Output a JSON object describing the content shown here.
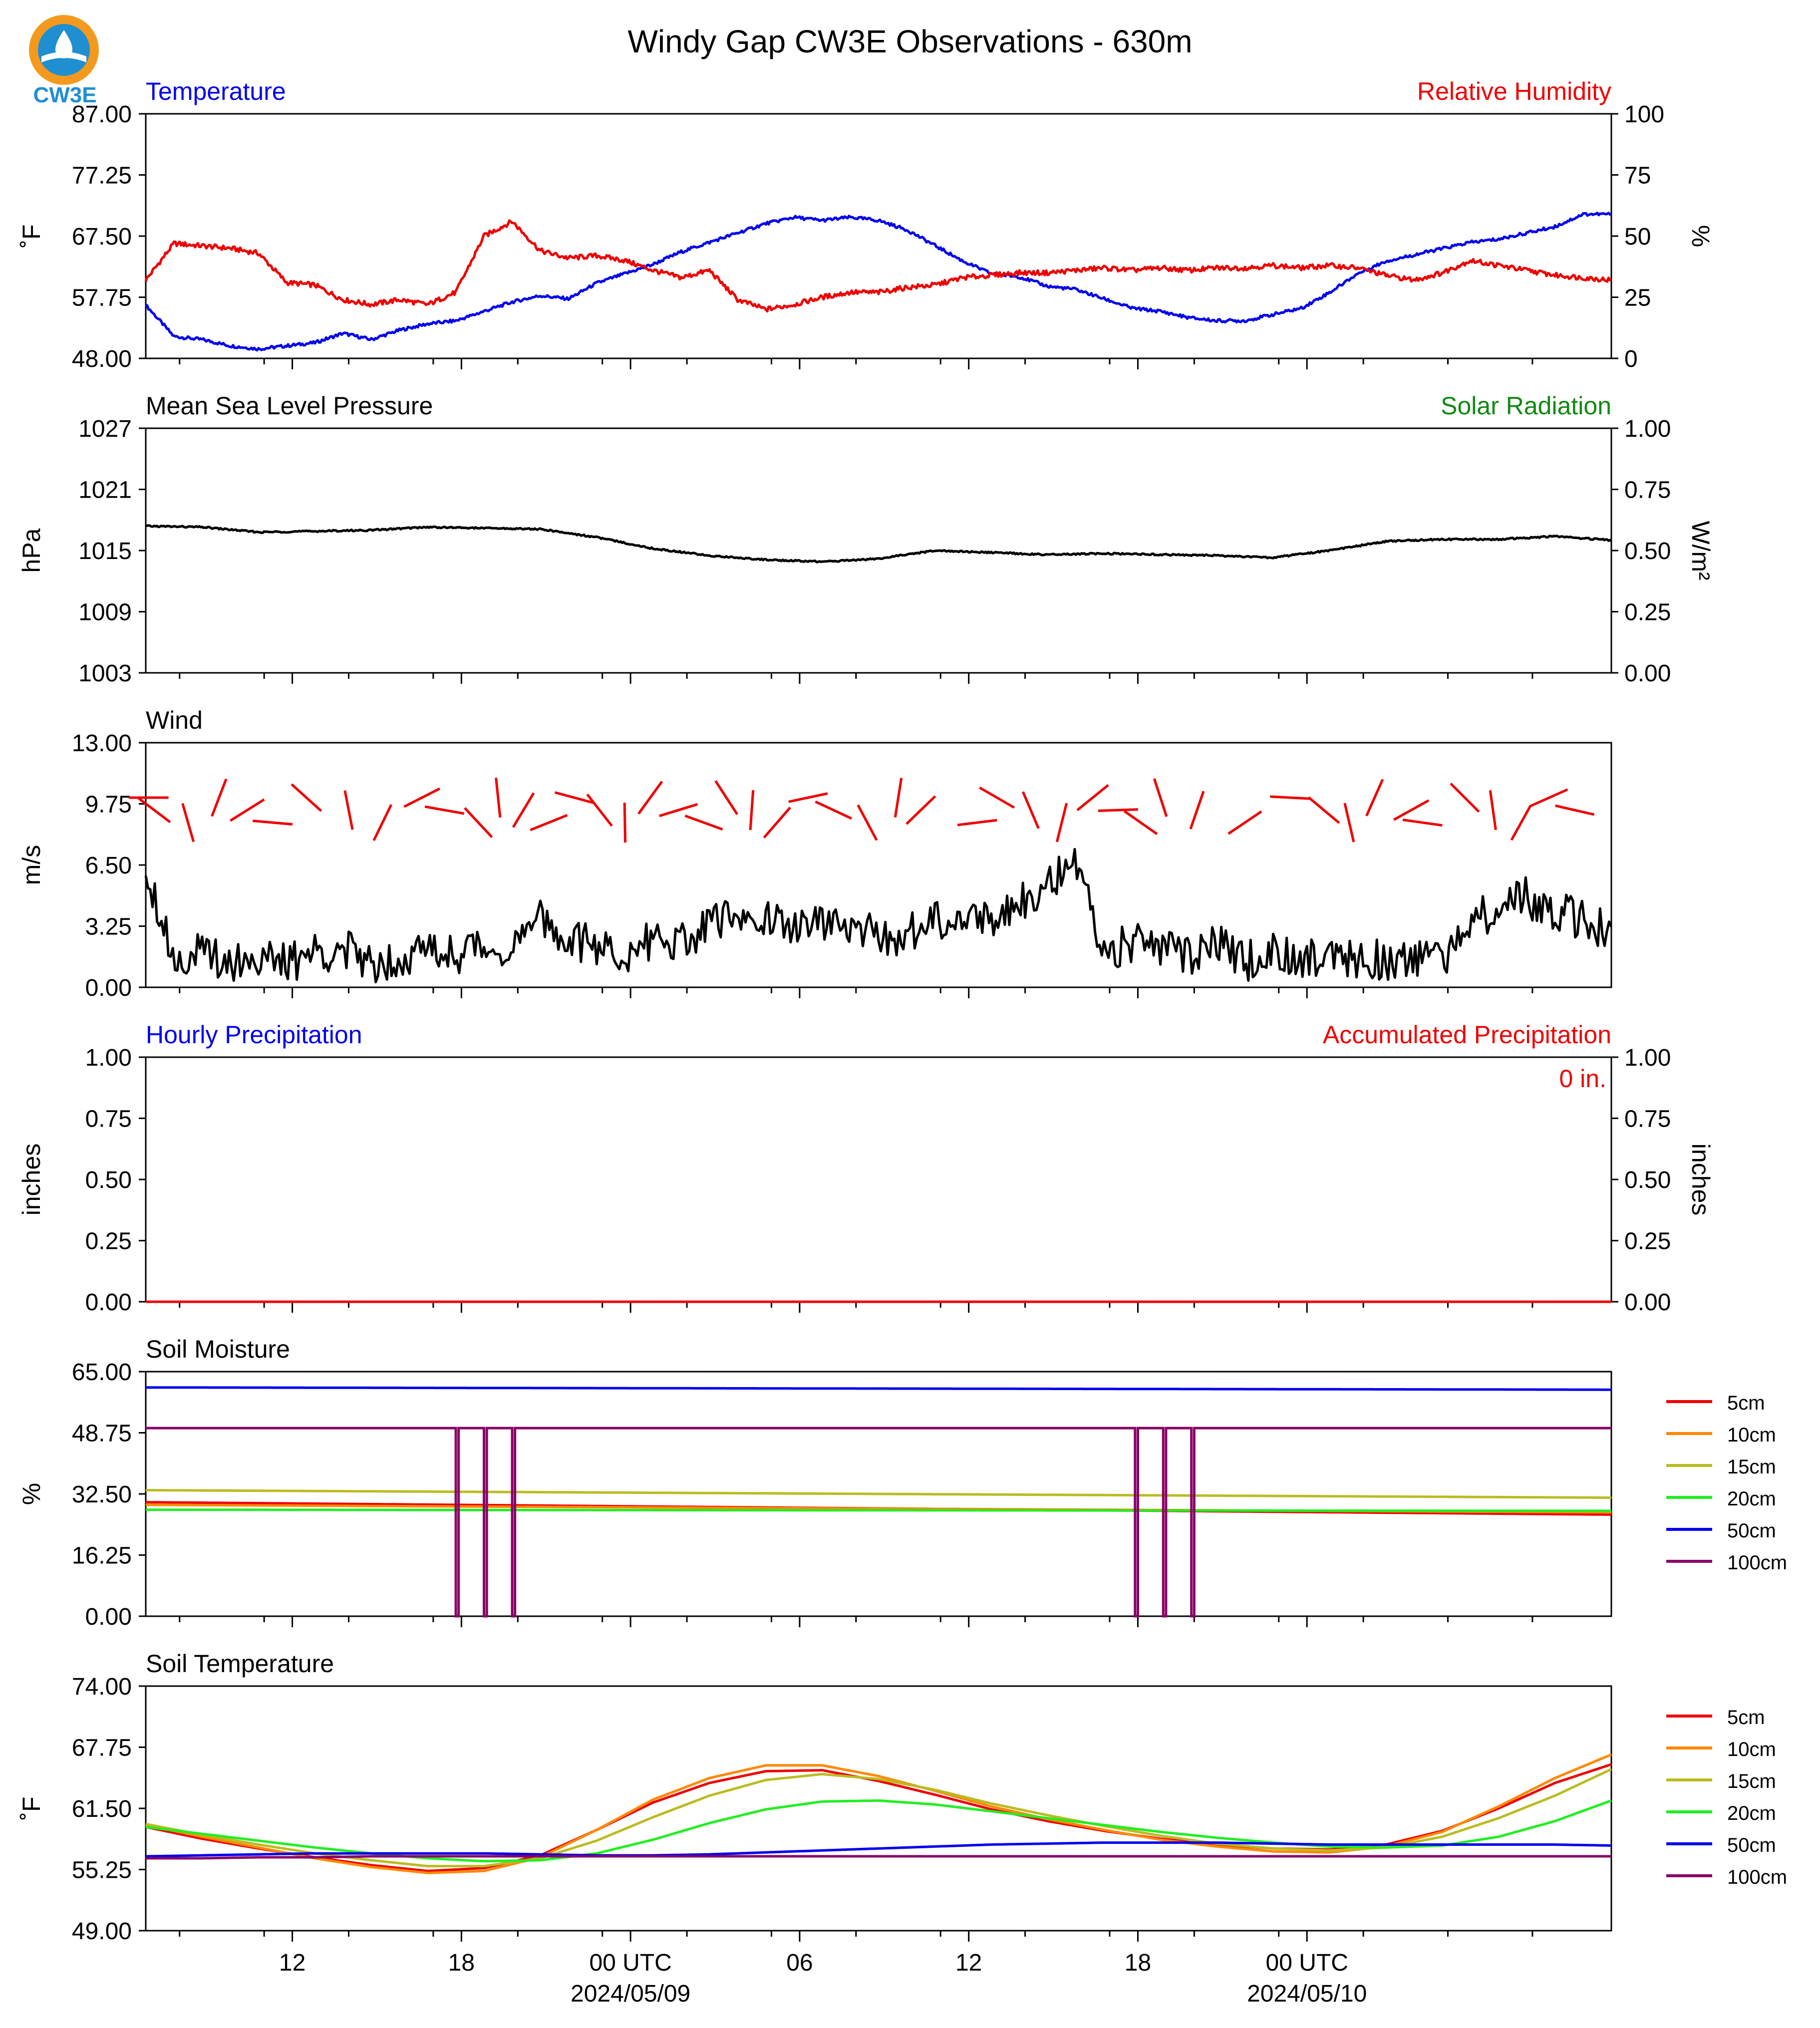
{
  "figure": {
    "title": "Windy Gap CW3E Observations - 630m",
    "logo_text": "CW3E",
    "x_ticks": [
      "12",
      "18",
      "00 UTC",
      "06",
      "12",
      "18",
      "00 UTC"
    ],
    "x_tick_sublabels": [
      "2024/05/09",
      "2024/05/10"
    ]
  },
  "chart_data": [
    {
      "id": "temperature-humidity",
      "type": "line",
      "title_left": "Temperature",
      "title_right": "Relative Humidity",
      "ylabel": "˚F",
      "ylabel_right": "%",
      "ylim": [
        48.0,
        87.0
      ],
      "ylim_right": [
        0,
        100
      ],
      "yticks": [
        "48.00",
        "57.75",
        "67.50",
        "77.25",
        "87.00"
      ],
      "yticks_right": [
        "0",
        "25",
        "50",
        "75",
        "100"
      ],
      "x_hours": [
        0,
        1,
        2,
        3,
        4,
        5,
        6,
        7,
        8,
        9,
        10,
        11,
        12,
        13,
        14,
        15,
        16,
        17,
        18,
        19,
        20,
        21,
        22,
        23,
        24,
        25,
        26,
        27,
        28,
        29,
        30,
        31,
        32,
        33,
        34,
        35,
        36,
        37,
        38,
        39,
        40,
        41,
        42,
        43,
        44,
        45,
        46,
        47,
        48,
        49,
        50,
        51,
        52
      ],
      "series": [
        {
          "name": "Temperature",
          "color": "#0000ee",
          "values": [
            56.5,
            51.5,
            51.0,
            50.0,
            49.5,
            50.0,
            50.5,
            52.0,
            51.0,
            52.5,
            53.5,
            54.0,
            55.5,
            57.0,
            58.0,
            57.5,
            60.0,
            61.5,
            63.0,
            65.0,
            66.5,
            68.0,
            69.5,
            70.5,
            70.0,
            70.5,
            70.0,
            68.5,
            66.0,
            63.5,
            61.5,
            61.0,
            59.5,
            59.0,
            57.5,
            56.0,
            55.5,
            54.5,
            54.0,
            54.0,
            55.0,
            56.0,
            58.5,
            61.5,
            63.5,
            64.5,
            65.5,
            66.5,
            67.0,
            68.0,
            69.0,
            71.0,
            71.0
          ]
        },
        {
          "name": "Relative Humidity",
          "color": "#ee0000",
          "values": [
            32.0,
            47.0,
            46.0,
            45.0,
            43.0,
            31.0,
            30.0,
            24.0,
            22.0,
            24.0,
            22.0,
            27.0,
            50.0,
            56.0,
            44.0,
            41.0,
            42.0,
            40.0,
            36.0,
            33.0,
            36.0,
            24.0,
            20.0,
            22.0,
            25.0,
            27.0,
            27.0,
            29.0,
            30.0,
            33.0,
            34.0,
            35.0,
            35.0,
            36.0,
            37.0,
            36.0,
            37.0,
            36.0,
            37.0,
            37.0,
            38.0,
            37.0,
            38.0,
            37.0,
            34.0,
            32.0,
            35.0,
            40.0,
            38.0,
            36.0,
            34.0,
            33.0,
            32.0
          ]
        }
      ]
    },
    {
      "id": "pressure-solar",
      "type": "line",
      "title_left": "Mean Sea Level Pressure",
      "title_right": "Solar Radiation",
      "ylabel": "hPa",
      "ylabel_right": "W/m²",
      "ylim": [
        1003,
        1027
      ],
      "ylim_right": [
        0.0,
        1.0
      ],
      "yticks": [
        "1003",
        "1009",
        "1015",
        "1021",
        "1027"
      ],
      "yticks_right": [
        "0.00",
        "0.25",
        "0.50",
        "0.75",
        "1.00"
      ],
      "x_hours": [
        0,
        2,
        4,
        6,
        8,
        10,
        12,
        14,
        16,
        18,
        20,
        22,
        24,
        26,
        28,
        30,
        32,
        34,
        36,
        38,
        40,
        42,
        44,
        46,
        48,
        50,
        52
      ],
      "series": [
        {
          "name": "Pressure",
          "color": "#000000",
          "values": [
            1017.4,
            1017.3,
            1016.8,
            1016.9,
            1017.0,
            1017.3,
            1017.2,
            1017.1,
            1016.3,
            1015.2,
            1014.5,
            1014.1,
            1013.9,
            1014.2,
            1015.0,
            1014.8,
            1014.6,
            1014.7,
            1014.6,
            1014.5,
            1014.3,
            1015.0,
            1015.9,
            1016.1,
            1016.1,
            1016.4,
            1016.0
          ]
        }
      ]
    },
    {
      "id": "wind",
      "type": "line",
      "title_left": "Wind",
      "ylabel": "m/s",
      "ylim": [
        0.0,
        13.0
      ],
      "yticks": [
        "0.00",
        "3.25",
        "6.50",
        "9.75",
        "13.00"
      ],
      "x_hours": [
        0,
        1,
        2,
        3,
        4,
        5,
        6,
        7,
        8,
        9,
        10,
        11,
        12,
        13,
        14,
        15,
        16,
        17,
        18,
        19,
        20,
        21,
        22,
        23,
        24,
        25,
        26,
        27,
        28,
        29,
        30,
        31,
        32,
        33,
        34,
        35,
        36,
        37,
        38,
        39,
        40,
        41,
        42,
        43,
        44,
        45,
        46,
        47,
        48,
        49,
        50,
        51,
        52
      ],
      "series": [
        {
          "name": "Wind speed",
          "color": "#000000",
          "values": [
            6.5,
            1.5,
            1.8,
            1.4,
            1.6,
            1.2,
            1.9,
            2.0,
            1.3,
            1.6,
            2.0,
            1.8,
            2.2,
            2.0,
            3.6,
            2.5,
            2.2,
            1.6,
            2.6,
            2.4,
            3.2,
            4.0,
            3.6,
            3.2,
            3.4,
            3.0,
            2.8,
            2.7,
            3.6,
            3.9,
            3.6,
            4.6,
            5.6,
            6.3,
            1.9,
            2.4,
            2.0,
            1.6,
            2.4,
            1.3,
            2.0,
            1.6,
            1.8,
            1.5,
            1.4,
            1.6,
            1.4,
            3.6,
            4.2,
            4.8,
            4.0,
            3.6,
            2.9
          ]
        },
        {
          "name": "Wind direction",
          "color": "#ee0000",
          "arrow_hours": [
            0.1,
            0.3,
            1.5,
            2.6,
            3.6,
            4.5,
            5.7,
            7.2,
            8.4,
            9.8,
            10.6,
            11.8,
            12.5,
            13.4,
            14.3,
            15.2,
            16.1,
            17.0,
            17.9,
            18.9,
            19.8,
            20.6,
            21.5,
            22.4,
            23.5,
            24.4,
            25.6,
            26.7,
            27.5,
            29.5,
            30.2,
            31.4,
            32.5,
            33.6,
            34.5,
            35.3,
            36.0,
            37.3,
            39.0,
            40.6,
            41.8,
            42.7,
            43.6,
            44.9,
            45.3,
            46.8,
            47.8,
            48.8,
            49.8,
            50.7
          ]
        }
      ]
    },
    {
      "id": "precipitation",
      "type": "line",
      "title_left": "Hourly Precipitation",
      "title_right": "Accumulated Precipitation",
      "annotation": "0 in.",
      "ylabel": "inches",
      "ylabel_right": "inches",
      "ylim": [
        0.0,
        1.0
      ],
      "ylim_right": [
        0.0,
        1.0
      ],
      "yticks": [
        "0.00",
        "0.25",
        "0.50",
        "0.75",
        "1.00"
      ],
      "yticks_right": [
        "0.00",
        "0.25",
        "0.50",
        "0.75",
        "1.00"
      ],
      "x_hours": [
        0,
        52
      ],
      "series": [
        {
          "name": "Hourly Precipitation",
          "color": "#0000ee",
          "values": [
            0,
            0
          ]
        },
        {
          "name": "Accumulated Precipitation",
          "color": "#ee0000",
          "values": [
            0,
            0
          ]
        }
      ]
    },
    {
      "id": "soil-moisture",
      "type": "line",
      "title_left": "Soil Moisture",
      "ylabel": "%",
      "ylim": [
        0.0,
        65.0
      ],
      "yticks": [
        "0.00",
        "16.25",
        "32.50",
        "48.75",
        "65.00"
      ],
      "legend": "right",
      "x_hours": [
        0,
        52
      ],
      "series": [
        {
          "name": "5cm",
          "color": "#ee0000",
          "values": [
            30.3,
            27.0
          ]
        },
        {
          "name": "10cm",
          "color": "#ff8800",
          "values": [
            29.6,
            27.6
          ]
        },
        {
          "name": "15cm",
          "color": "#bbbb22",
          "values": [
            33.5,
            31.5
          ]
        },
        {
          "name": "20cm",
          "color": "#22ee22",
          "values": [
            28.3,
            28.0
          ]
        },
        {
          "name": "50cm",
          "color": "#0000ee",
          "values": [
            60.8,
            60.2
          ]
        },
        {
          "name": "100cm",
          "color": "#880066",
          "values": [
            50.0,
            50.0
          ],
          "dropouts_hours": [
            [
              11.0,
              11.1
            ],
            [
              12.0,
              12.1
            ],
            [
              13.0,
              13.1
            ],
            [
              35.1,
              35.2
            ],
            [
              36.1,
              36.2
            ],
            [
              37.1,
              37.2
            ]
          ]
        }
      ]
    },
    {
      "id": "soil-temperature",
      "type": "line",
      "title_left": "Soil Temperature",
      "ylabel": "˚F",
      "ylim": [
        49.0,
        74.0
      ],
      "yticks": [
        "49.00",
        "55.25",
        "61.50",
        "67.75",
        "74.00"
      ],
      "legend": "right",
      "x_hours": [
        0,
        2,
        4,
        6,
        8,
        10,
        12,
        14,
        16,
        18,
        20,
        22,
        24,
        26,
        28,
        30,
        32,
        34,
        36,
        38,
        40,
        42,
        44,
        46,
        48,
        50,
        52
      ],
      "series": [
        {
          "name": "5cm",
          "color": "#ee0000",
          "values": [
            59.6,
            58.4,
            57.4,
            56.5,
            55.7,
            55.1,
            55.4,
            56.7,
            59.3,
            62.1,
            64.1,
            65.3,
            65.4,
            64.3,
            62.9,
            61.4,
            60.2,
            59.2,
            58.4,
            57.8,
            57.4,
            57.3,
            57.8,
            59.2,
            61.5,
            64.1,
            66.0
          ]
        },
        {
          "name": "10cm",
          "color": "#ff8800",
          "values": [
            59.8,
            58.6,
            57.5,
            56.4,
            55.5,
            54.9,
            55.1,
            56.5,
            59.3,
            62.4,
            64.6,
            65.9,
            65.9,
            64.8,
            63.3,
            61.7,
            60.4,
            59.3,
            58.3,
            57.6,
            57.1,
            57.0,
            57.6,
            59.1,
            61.7,
            64.6,
            67.0
          ]
        },
        {
          "name": "15cm",
          "color": "#bbbb22",
          "values": [
            59.9,
            58.8,
            57.8,
            56.9,
            56.2,
            55.6,
            55.6,
            56.4,
            58.2,
            60.6,
            62.8,
            64.4,
            65.0,
            64.5,
            63.4,
            62.0,
            60.8,
            59.7,
            58.7,
            57.9,
            57.4,
            57.2,
            57.5,
            58.6,
            60.5,
            62.8,
            65.5
          ]
        },
        {
          "name": "20cm",
          "color": "#22ee22",
          "values": [
            59.6,
            58.9,
            58.2,
            57.5,
            56.9,
            56.4,
            56.1,
            56.2,
            56.9,
            58.3,
            60.0,
            61.4,
            62.2,
            62.3,
            61.9,
            61.2,
            60.5,
            59.8,
            59.1,
            58.5,
            58.0,
            57.6,
            57.5,
            57.7,
            58.6,
            60.2,
            62.3
          ]
        },
        {
          "name": "50cm",
          "color": "#0000ee",
          "values": [
            56.6,
            56.7,
            56.8,
            56.9,
            56.9,
            56.9,
            56.9,
            56.8,
            56.7,
            56.7,
            56.8,
            57.0,
            57.2,
            57.4,
            57.6,
            57.8,
            57.9,
            58.0,
            58.0,
            58.0,
            57.9,
            57.8,
            57.8,
            57.8,
            57.8,
            57.8,
            57.7
          ]
        },
        {
          "name": "100cm",
          "color": "#880066",
          "values": [
            56.4,
            56.4,
            56.5,
            56.5,
            56.6,
            56.6,
            56.6,
            56.6,
            56.6,
            56.6,
            56.6,
            56.6,
            56.6,
            56.6,
            56.6,
            56.6,
            56.6,
            56.6,
            56.6,
            56.6,
            56.6,
            56.6,
            56.6,
            56.6,
            56.6,
            56.6,
            56.6
          ]
        }
      ]
    }
  ]
}
